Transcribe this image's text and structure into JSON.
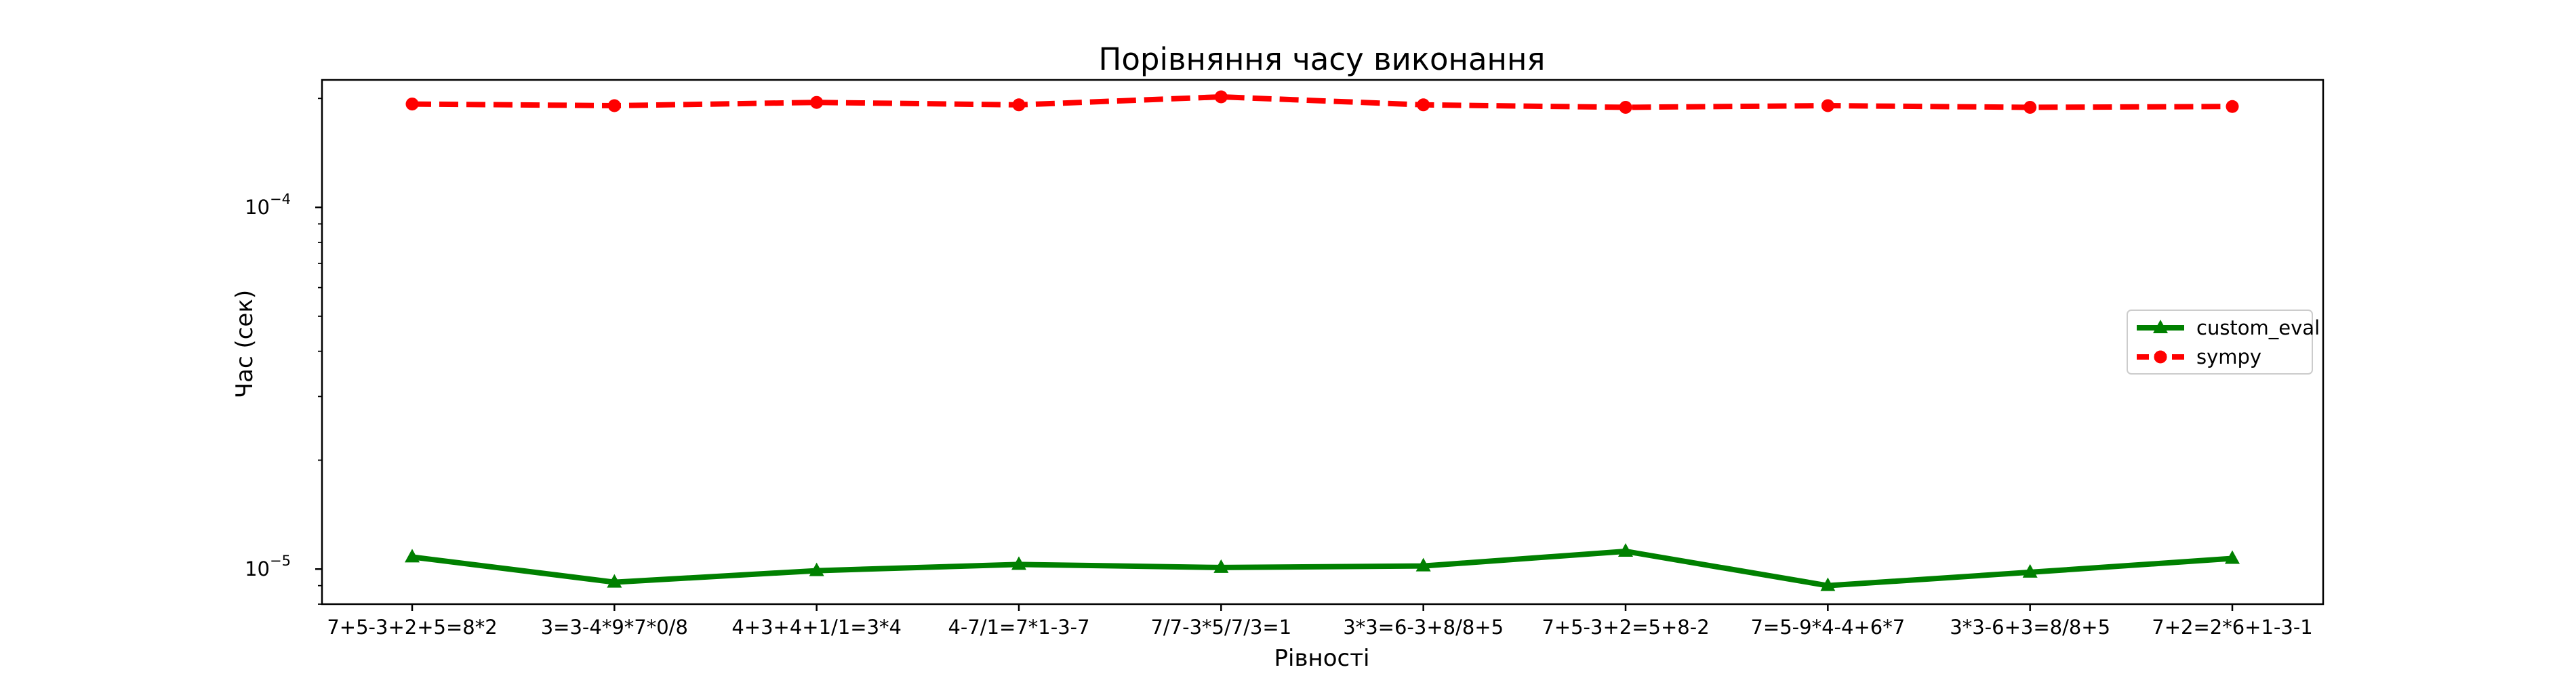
{
  "chart_data": {
    "type": "line",
    "title": "Порівняння часу виконання",
    "xlabel": "Рівності",
    "ylabel": "Час (сек)",
    "yscale": "log",
    "ylim": [
      8e-06,
      0.000225
    ],
    "grid": false,
    "legend_position": "center-right",
    "categories": [
      "7+5-3+2+5=8*2",
      "3=3-4*9*7*0/8",
      "4+3+4+1/1=3*4",
      "4-7/1=7*1-3-7",
      "7/7-3*5/7/3=1",
      "3*3=6-3+8/8+5",
      "7+5-3+2=5+8-2",
      "7=5-9*4-4+6*7",
      "3*3-6+3=8/8+5",
      "7+2=2*6+1-3-1"
    ],
    "y_ticks": [
      {
        "value": 0.0001,
        "base": "10",
        "exponent": "−4"
      },
      {
        "value": 1e-05,
        "base": "10",
        "exponent": "−5"
      }
    ],
    "series": [
      {
        "name": "custom_eval",
        "color": "#008000",
        "line_style": "solid",
        "marker": "triangle-up",
        "values": [
          1.08e-05,
          9.2e-06,
          9.9e-06,
          1.03e-05,
          1.01e-05,
          1.02e-05,
          1.12e-05,
          9e-06,
          9.8e-06,
          1.07e-05
        ]
      },
      {
        "name": "sympy",
        "color": "#ff0000",
        "line_style": "dashed",
        "marker": "circle",
        "values": [
          0.000193,
          0.000191,
          0.000195,
          0.000192,
          0.000202,
          0.000192,
          0.000189,
          0.000191,
          0.000189,
          0.00019
        ]
      }
    ]
  }
}
